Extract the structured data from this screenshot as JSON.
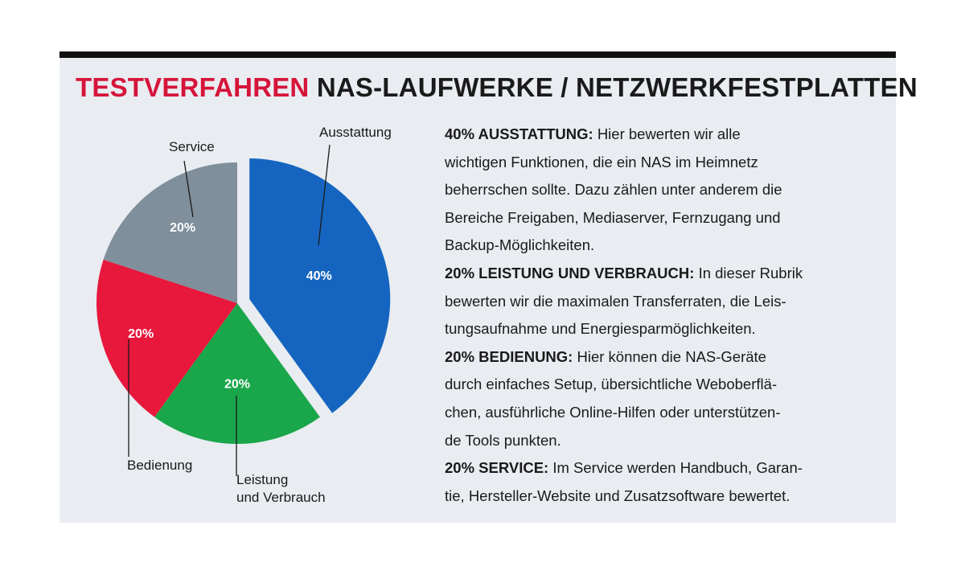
{
  "title": {
    "accent": "TESTVERFAHREN",
    "rest": "NAS-LAUFWERKE / NETZWERKFESTPLATTEN"
  },
  "colors": {
    "accent": "#d6143a",
    "ausstattung": "#1565c0",
    "leistung": "#1aa64a",
    "bedienung": "#e8173c",
    "service": "#7f8f9b"
  },
  "chart_data": {
    "type": "pie",
    "title": "TESTVERFAHREN NAS-LAUFWERKE / NETZWERKFESTPLATTEN",
    "start_angle_deg": 0,
    "direction": "clockwise",
    "exploded": [
      "Ausstattung"
    ],
    "slices": [
      {
        "key": "ausstattung",
        "label": "Ausstattung",
        "value": 40,
        "value_label": "40%",
        "color": "#1565c0"
      },
      {
        "key": "leistung",
        "label": "Leistung und Verbrauch",
        "label_lines": [
          "Leistung",
          "und Verbrauch"
        ],
        "value": 20,
        "value_label": "20%",
        "color": "#1aa64a"
      },
      {
        "key": "bedienung",
        "label": "Bedienung",
        "value": 20,
        "value_label": "20%",
        "color": "#e8173c"
      },
      {
        "key": "service",
        "label": "Service",
        "value": 20,
        "value_label": "20%",
        "color": "#7f8f9b"
      }
    ]
  },
  "description": [
    {
      "head": "40% AUSSTATTUNG:",
      "lines": [
        "Hier bewerten wir alle",
        "wichtigen Funktionen, die ein NAS im Heimnetz",
        "beherrschen sollte. Dazu zählen unter anderem die",
        "Bereiche Freigaben, Mediaserver, Fernzugang und",
        "Backup-Möglichkeiten."
      ]
    },
    {
      "head": "20% LEISTUNG UND VERBRAUCH:",
      "lines": [
        "In dieser Rubrik",
        "bewerten wir die maximalen Transferraten, die Leis-",
        "tungsaufnahme und Energiesparmöglichkeiten."
      ]
    },
    {
      "head": "20% BEDIENUNG:",
      "lines": [
        "Hier können die NAS-Geräte",
        "durch einfaches Setup, übersichtliche Weboberflä-",
        "chen, ausführliche Online-Hilfen oder unterstützen-",
        "de Tools punkten."
      ]
    },
    {
      "head": "20% SERVICE:",
      "lines": [
        "Im Service werden Handbuch, Garan-",
        "tie, Hersteller-Website und Zusatzsoftware bewertet."
      ]
    }
  ]
}
